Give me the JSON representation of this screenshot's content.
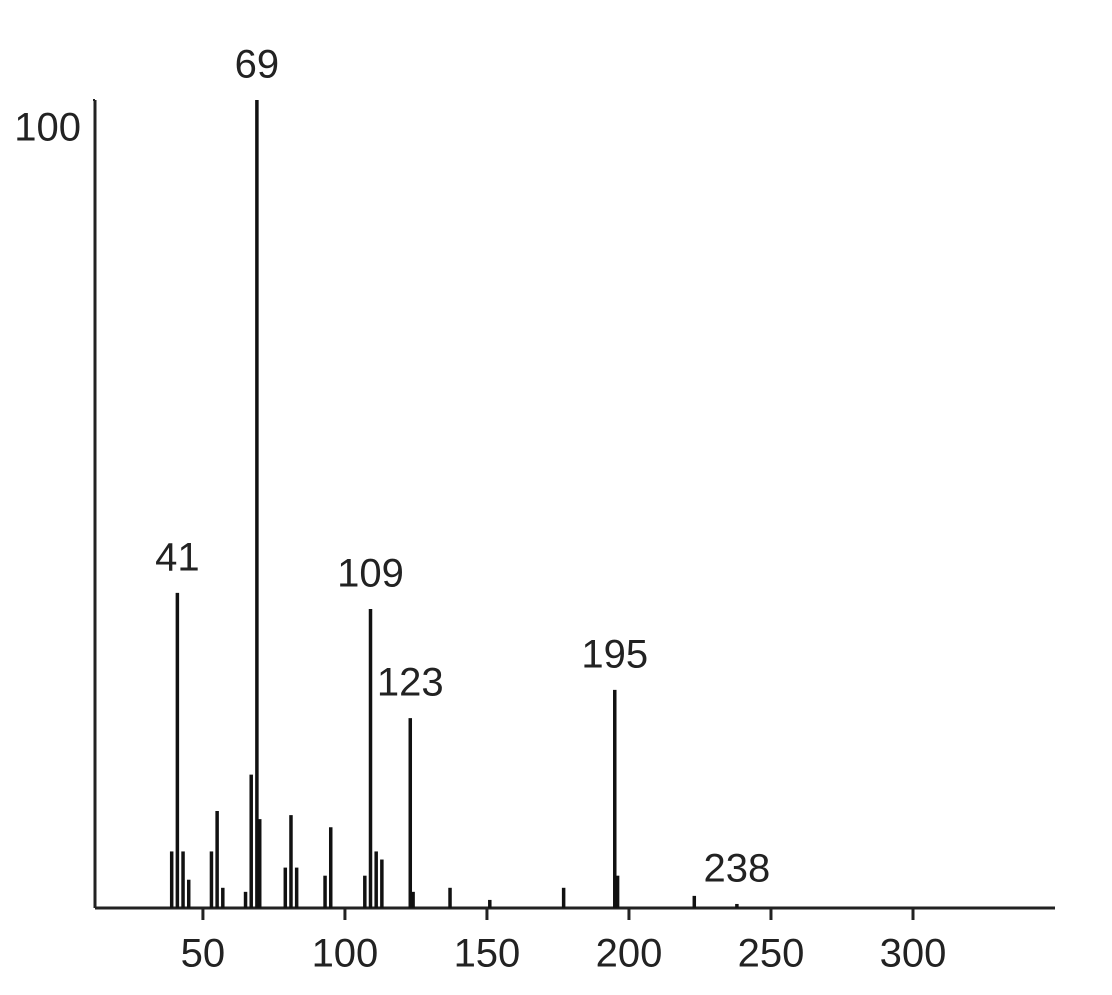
{
  "chart_data": {
    "type": "stick",
    "labeled_peaks": {
      "x": [
        41,
        69,
        109,
        123,
        195,
        238
      ],
      "values": [
        39,
        100,
        37,
        23.5,
        27,
        0.5
      ]
    },
    "peaks": {
      "x": [
        39,
        43,
        45,
        53,
        55,
        57,
        65,
        67,
        70,
        79,
        81,
        83,
        93,
        95,
        107,
        111,
        113,
        124,
        137,
        151,
        177,
        196,
        223
      ],
      "values": [
        7,
        7,
        3.5,
        7,
        12,
        2.5,
        2,
        16.5,
        11,
        5,
        11.5,
        5,
        4,
        10,
        4,
        7,
        6,
        2,
        2.5,
        1,
        2.5,
        4,
        1.5
      ]
    },
    "color": "#111111",
    "xlim": [
      12,
      350
    ],
    "xticks": [
      50,
      100,
      150,
      200,
      250,
      300
    ],
    "ylim": [
      0,
      100
    ],
    "yticks": [
      100
    ]
  }
}
